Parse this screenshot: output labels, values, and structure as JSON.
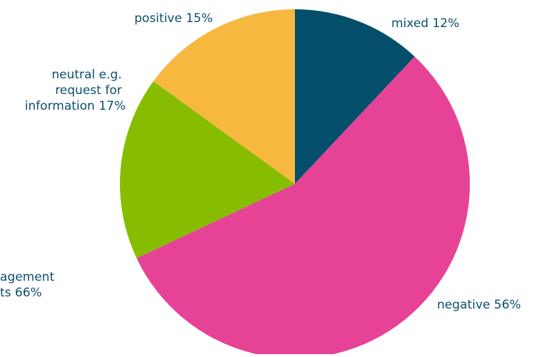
{
  "chart_data": {
    "type": "pie",
    "start_angle_deg": 0,
    "direction": "clockwise",
    "slices": [
      {
        "label": "mixed 12%",
        "value": 12,
        "color": "#034f6b"
      },
      {
        "label": "negative 56%",
        "value": 56,
        "color": "#e64296"
      },
      {
        "label": "neutral e.g. request for information 17%",
        "value": 17,
        "color": "#87bd00"
      },
      {
        "label": "positive 15%",
        "value": 15,
        "color": "#f7b840"
      }
    ],
    "annotations": [
      {
        "text": "agement"
      },
      {
        "text": "ts 66%"
      }
    ]
  }
}
